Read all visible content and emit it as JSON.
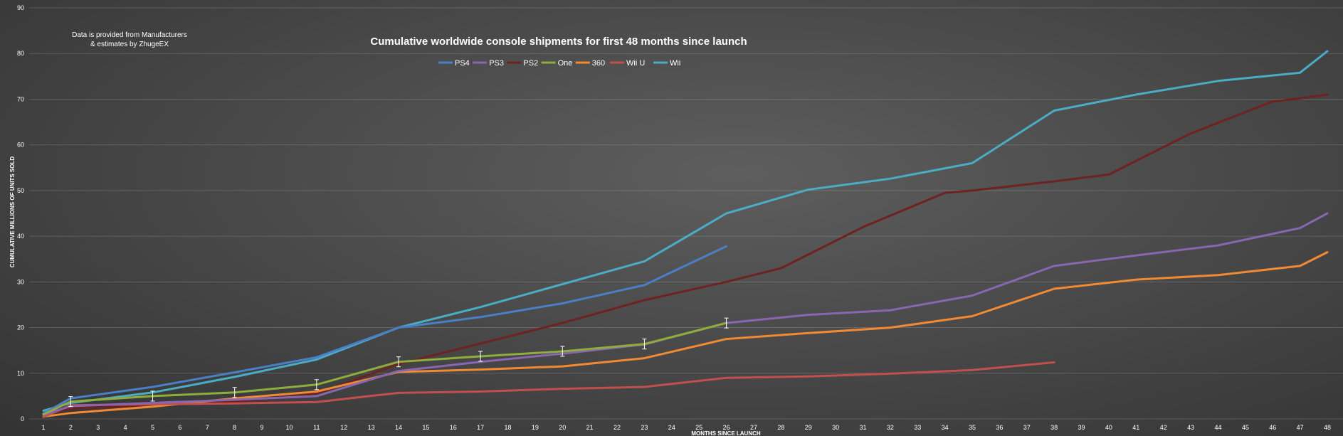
{
  "chart_data": {
    "type": "line",
    "title": "Cumulative worldwide console shipments for first 48 months since launch",
    "annotation": [
      "Data is provided from Manufacturers",
      "& estimates by ZhugeEX"
    ],
    "xlabel": "MONTHS SINCE LAUNCH",
    "ylabel": "CUMULATIVE MILLIONS OF UNITS SOLD",
    "xlim": [
      1,
      48
    ],
    "ylim": [
      0,
      90
    ],
    "x_ticks": [
      1,
      2,
      3,
      4,
      5,
      6,
      7,
      8,
      9,
      10,
      11,
      12,
      13,
      14,
      15,
      16,
      17,
      18,
      19,
      20,
      21,
      22,
      23,
      24,
      25,
      26,
      27,
      28,
      29,
      30,
      31,
      32,
      33,
      34,
      35,
      36,
      37,
      38,
      39,
      40,
      41,
      42,
      43,
      44,
      45,
      46,
      47,
      48
    ],
    "y_ticks": [
      0,
      10,
      20,
      30,
      40,
      50,
      60,
      70,
      80,
      90
    ],
    "grid": true,
    "legend_position": "top-center",
    "series": [
      {
        "name": "PS4",
        "color": "#4a7fc6",
        "x": [
          1,
          2,
          5,
          8,
          11,
          14,
          17,
          20,
          23,
          26
        ],
        "y": [
          1.2,
          4.5,
          7.0,
          10.2,
          13.5,
          20.0,
          22.3,
          25.3,
          29.3,
          37.8
        ]
      },
      {
        "name": "PS3",
        "color": "#8866b0",
        "x": [
          1,
          2,
          5,
          8,
          11,
          14,
          17,
          20,
          23,
          26,
          29,
          32,
          35,
          38,
          41,
          44,
          47,
          48
        ],
        "y": [
          0.9,
          2.8,
          3.5,
          4.2,
          5.0,
          10.5,
          12.5,
          14.3,
          16.3,
          21.0,
          22.8,
          23.8,
          27.0,
          33.5,
          35.8,
          38.0,
          41.8,
          45.0
        ]
      },
      {
        "name": "PS2",
        "color": "#6e2222",
        "x": [
          1,
          2,
          5,
          8,
          11,
          14,
          17,
          20,
          23,
          26,
          28,
          31,
          34,
          35,
          38,
          40,
          43,
          46,
          47,
          48
        ],
        "y": [
          0.9,
          2.3,
          3.0,
          3.8,
          5.5,
          12.0,
          16.5,
          21.0,
          26.0,
          30.0,
          33.0,
          42.0,
          49.5,
          50.0,
          52.0,
          53.5,
          62.5,
          69.5,
          70.2,
          71.0
        ]
      },
      {
        "name": "One",
        "color": "#8fad3c",
        "x": [
          1,
          2,
          5,
          8,
          11,
          14,
          17,
          20,
          23,
          26
        ],
        "y": [
          1.0,
          3.8,
          5.0,
          5.8,
          7.5,
          12.5,
          13.7,
          14.8,
          16.4,
          21.0
        ],
        "error_bars": true
      },
      {
        "name": "360",
        "color": "#f08a33",
        "x": [
          1,
          2,
          5,
          8,
          11,
          14,
          17,
          20,
          23,
          26,
          29,
          32,
          35,
          38,
          41,
          44,
          47,
          48
        ],
        "y": [
          0.5,
          1.3,
          2.7,
          4.5,
          6.0,
          10.3,
          10.8,
          11.5,
          13.3,
          17.5,
          18.8,
          20.0,
          22.5,
          28.5,
          30.5,
          31.5,
          33.5,
          36.5
        ]
      },
      {
        "name": "Wii U",
        "color": "#c0504d",
        "x": [
          1,
          2,
          5,
          8,
          11,
          14,
          17,
          20,
          23,
          26,
          29,
          32,
          35,
          38
        ],
        "y": [
          0.4,
          3.0,
          3.2,
          3.4,
          3.7,
          5.7,
          6.0,
          6.6,
          7.0,
          9.0,
          9.3,
          9.9,
          10.7,
          12.4
        ]
      },
      {
        "name": "Wii",
        "color": "#4bacc6",
        "x": [
          1,
          2,
          5,
          8,
          11,
          14,
          17,
          20,
          23,
          26,
          29,
          32,
          35,
          38,
          41,
          44,
          47,
          48
        ],
        "y": [
          1.8,
          3.5,
          5.8,
          9.2,
          13.0,
          20.0,
          24.5,
          29.5,
          34.5,
          45.0,
          50.2,
          52.6,
          56.0,
          67.5,
          71.0,
          74.0,
          75.8,
          80.5
        ]
      }
    ]
  }
}
